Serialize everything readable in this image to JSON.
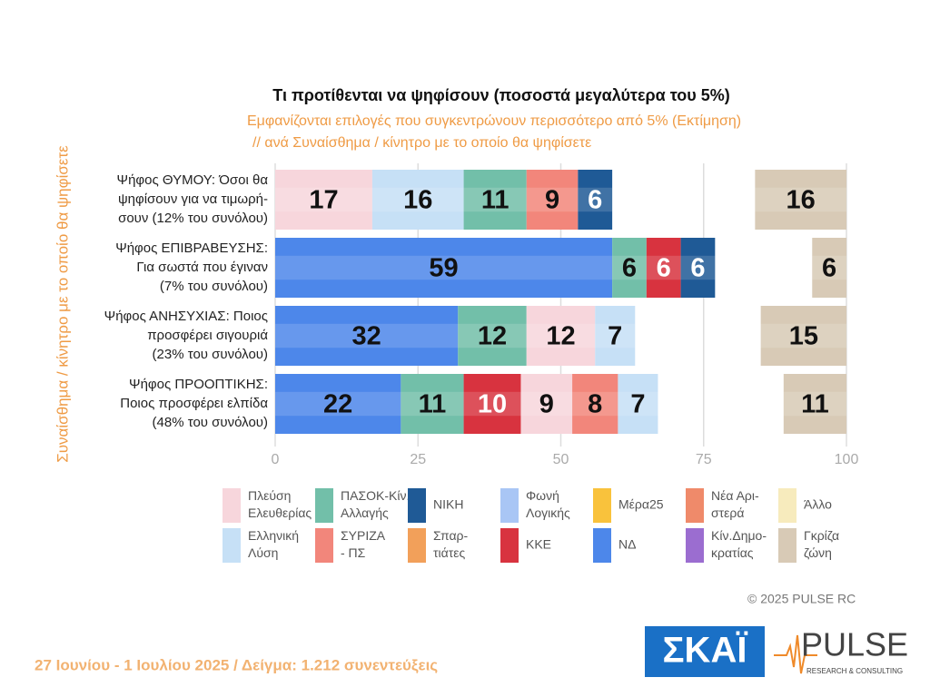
{
  "title": "Τι προτίθενται να ψηφίσουν   (ποσοστά μεγαλύτερα του 5%)",
  "subtitle": [
    "Εμφανίζονται επιλογές που συγκεντρώνουν περισσότερο από 5%   (Εκτίμηση)",
    "// ανά Συναίσθημα / κίνητρο με το οποίο θα ψηφίσετε"
  ],
  "chart_data": {
    "type": "bar",
    "orientation": "horizontal",
    "stacked": true,
    "ylabel": "Συναίσθημα / κίνητρο με το οποίο θα ψηφίσετε",
    "categories": [
      [
        "Ψήφος ΘΥΜΟΥ:  Όσοι θα",
        "ψηφίσουν για να τιμωρή-",
        "σουν   (12% του συνόλου)"
      ],
      [
        "Ψήφος ΕΠΙΒΡΑΒΕΥΣΗΣ:",
        "Για σωστά που έγιναν",
        "(7% του συνόλου)"
      ],
      [
        "Ψήφος ΑΝΗΣΥΧΙΑΣ:  Ποιος",
        "προσφέρει σιγουριά",
        "(23% του συνόλου)"
      ],
      [
        "Ψήφος ΠΡΟΟΠΤΙΚΗΣ:",
        "Ποιος προσφέρει ελπίδα",
        "(48% του συνόλου)"
      ]
    ],
    "segments": [
      [
        {
          "color": "#f7d6dc",
          "value": 17
        },
        {
          "color": "#c6e0f6",
          "value": 16
        },
        {
          "color": "#72bfa9",
          "value": 11
        },
        {
          "color": "#f2867b",
          "value": 9
        },
        {
          "color": "#1f5a96",
          "value": 6
        }
      ],
      [
        {
          "color": "#4d87ea",
          "value": 59
        },
        {
          "color": "#72bfa9",
          "value": 6
        },
        {
          "color": "#d8333f",
          "value": 6
        },
        {
          "color": "#1f5a96",
          "value": 6
        }
      ],
      [
        {
          "color": "#4d87ea",
          "value": 32
        },
        {
          "color": "#72bfa9",
          "value": 12
        },
        {
          "color": "#f7d6dc",
          "value": 12
        },
        {
          "color": "#c6e0f6",
          "value": 7
        }
      ],
      [
        {
          "color": "#4d87ea",
          "value": 22
        },
        {
          "color": "#72bfa9",
          "value": 11
        },
        {
          "color": "#d8333f",
          "value": 10
        },
        {
          "color": "#f7d6dc",
          "value": 9
        },
        {
          "color": "#f2867b",
          "value": 8
        },
        {
          "color": "#c6e0f6",
          "value": 7
        }
      ]
    ],
    "grey_zone": {
      "color": "#d8cab6",
      "values": [
        16,
        6,
        15,
        11
      ]
    },
    "xlim": [
      0,
      100
    ],
    "xticks": [
      0,
      25,
      50,
      75,
      100
    ],
    "grid": true,
    "legend": [
      {
        "name": [
          "Πλεύση",
          "Ελευθερίας"
        ],
        "color": "#f7d6dc"
      },
      {
        "name": [
          "ΠΑΣΟΚ-Κίν.",
          "Αλλαγής"
        ],
        "color": "#72bfa9"
      },
      {
        "name": [
          "ΝΙΚΗ"
        ],
        "color": "#1f5a96"
      },
      {
        "name": [
          "Φωνή",
          "Λογικής"
        ],
        "color": "#a9c6f5"
      },
      {
        "name": [
          "Μέρα25"
        ],
        "color": "#f9c23c"
      },
      {
        "name": [
          "Νέα Αρι-",
          "στερά"
        ],
        "color": "#ef8a6a"
      },
      {
        "name": [
          "Άλλο"
        ],
        "color": "#f7ebbd"
      },
      {
        "name": [
          "Ελληνική",
          "Λύση"
        ],
        "color": "#c6e0f6"
      },
      {
        "name": [
          "ΣΥΡΙΖΑ",
          "- ΠΣ"
        ],
        "color": "#f2867b"
      },
      {
        "name": [
          "Σπαρ-",
          "τιάτες"
        ],
        "color": "#f2a05a"
      },
      {
        "name": [
          "ΚΚΕ"
        ],
        "color": "#d8333f"
      },
      {
        "name": [
          "ΝΔ"
        ],
        "color": "#4d87ea"
      },
      {
        "name": [
          "Κίν.Δημο-",
          "κρατίας"
        ],
        "color": "#9b6dd0"
      },
      {
        "name": [
          "Γκρίζα",
          "ζώνη"
        ],
        "color": "#d8cab6"
      }
    ]
  },
  "footer": {
    "source": "27 Ιουνίου - 1 Ιουλίου 2025  /  Δείγμα:  1.212 συνεντεύξεις",
    "copyright": "©  2025  PULSE RC"
  },
  "logos": {
    "skai": "ΣΚΑΪ",
    "pulse": "PULSE",
    "pulse_tagline": "RESEARCH & CONSULTING"
  }
}
